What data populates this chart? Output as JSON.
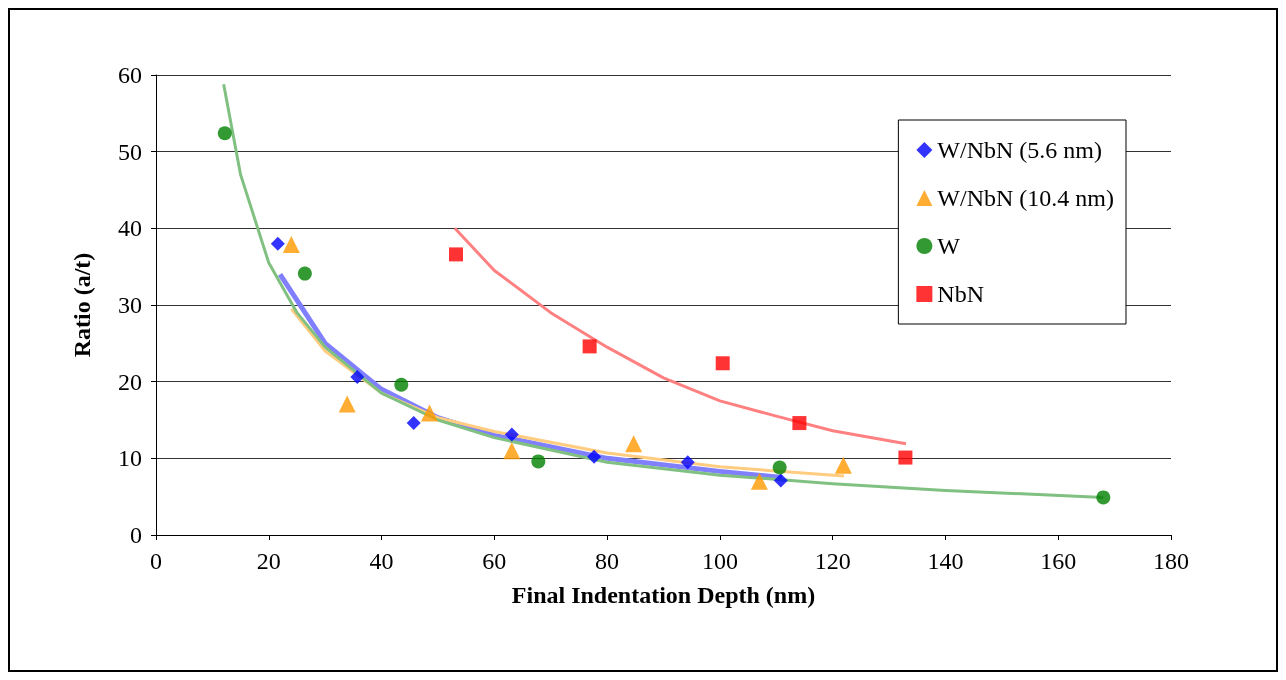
{
  "chart_data": {
    "type": "scatter",
    "xlabel": "Final Indentation Depth (nm)",
    "ylabel": "Ratio (a/t)",
    "xlim": [
      0,
      180
    ],
    "xticks": [
      0,
      20,
      40,
      60,
      80,
      100,
      120,
      140,
      160,
      180
    ],
    "ylim": [
      0,
      60
    ],
    "yticks": [
      0,
      10,
      20,
      30,
      40,
      50,
      60
    ],
    "grid": "y",
    "legend": "top right",
    "series": [
      {
        "type": "line",
        "color": "#8080ff",
        "marker": "none",
        "x": [
          22,
          30,
          40,
          50,
          60,
          80,
          100,
          111
        ],
        "values": [
          34,
          25,
          19,
          15.3,
          13,
          10,
          8.3,
          7.5
        ]
      },
      {
        "type": "line",
        "color": "#ffcc80",
        "marker": "none",
        "x": [
          24,
          30,
          40,
          50,
          60,
          80,
          100,
          122
        ],
        "values": [
          29.5,
          24,
          18.5,
          15.3,
          13.5,
          10.7,
          8.9,
          7.7
        ]
      },
      {
        "type": "line",
        "color": "#80c080",
        "marker": "none",
        "x": [
          12,
          15,
          20,
          25,
          30,
          40,
          50,
          60,
          80,
          100,
          120,
          140,
          168
        ],
        "values": [
          58.8,
          47,
          35.5,
          29,
          24.5,
          18.5,
          15,
          12.7,
          9.5,
          7.8,
          6.7,
          5.8,
          4.9
        ]
      },
      {
        "type": "line",
        "color": "#ff8080",
        "marker": "none",
        "x": [
          53,
          60,
          70,
          80,
          90,
          100,
          110,
          120,
          133
        ],
        "values": [
          40,
          34.5,
          29,
          24.5,
          20.5,
          17.5,
          15.5,
          13.6,
          11.9
        ]
      },
      {
        "name": "W/NbN (5.6 nm)",
        "color": "#0000ff",
        "marker": "diamond",
        "x": [
          21.6,
          35.7,
          45.7,
          63.1,
          77.7,
          94.3,
          110.8
        ],
        "values": [
          38,
          20.6,
          14.6,
          13.1,
          10.2,
          9.5,
          7.1
        ]
      },
      {
        "name": "W/NbN (10.4 nm)",
        "color": "#ff9900",
        "marker": "triangle",
        "x": [
          24,
          33.9,
          48.5,
          63.1,
          84.7,
          107,
          121.9
        ],
        "values": [
          37.9,
          17.1,
          15.9,
          11,
          11.9,
          7,
          9.1
        ]
      },
      {
        "name": "W",
        "color": "#008000",
        "marker": "circle",
        "x": [
          12.2,
          26.4,
          43.5,
          67.8,
          110.6,
          168
        ],
        "values": [
          52.4,
          34.1,
          19.6,
          9.6,
          8.8,
          4.9
        ]
      },
      {
        "name": "NbN",
        "color": "#ff0000",
        "marker": "square",
        "x": [
          53.2,
          76.9,
          100.5,
          114.1,
          132.9
        ],
        "values": [
          36.6,
          24.6,
          22.4,
          14.6,
          10.1
        ]
      }
    ]
  }
}
